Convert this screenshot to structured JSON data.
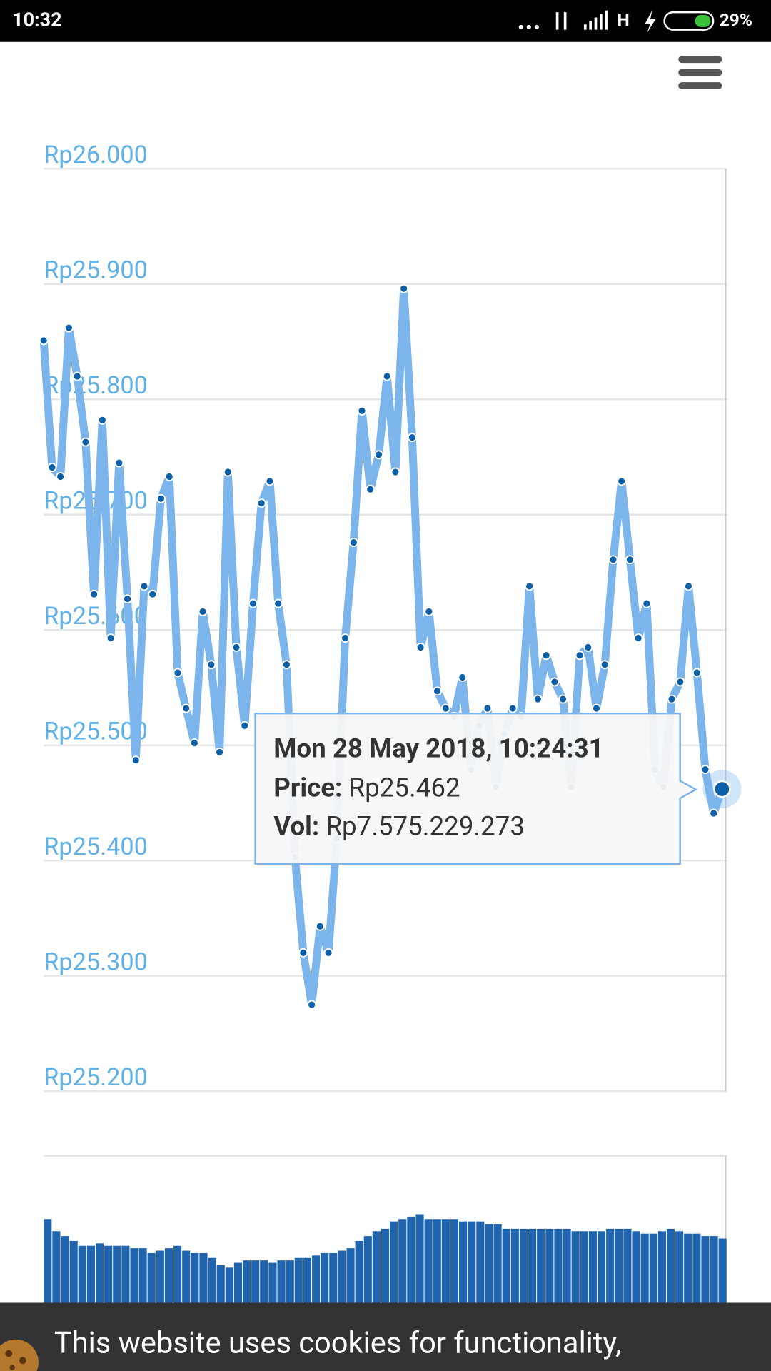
{
  "status_bar": {
    "time": "10:32",
    "network": "H",
    "battery": "29%"
  },
  "chart_data": [
    {
      "type": "line",
      "series": [
        {
          "name": "Price",
          "color": "#7cb5ec",
          "values": [
            25851,
            25741,
            25733,
            25862,
            25820,
            25763,
            25631,
            25782,
            25593,
            25745,
            25627,
            25487,
            25638,
            25631,
            25714,
            25733,
            25563,
            25532,
            25502,
            25616,
            25570,
            25494,
            25737,
            25585,
            25517,
            25623,
            25710,
            25729,
            25623,
            25570,
            25403,
            25320,
            25275,
            25343,
            25320,
            25419,
            25593,
            25676,
            25790,
            25722,
            25752,
            25820,
            25737,
            25896,
            25767,
            25585,
            25616,
            25547,
            25532,
            25525,
            25559,
            25479,
            25517,
            25532,
            25464,
            25510,
            25532,
            25525,
            25638,
            25540,
            25578,
            25555,
            25540,
            25464,
            25578,
            25585,
            25532,
            25570,
            25661,
            25729,
            25661,
            25593,
            25623,
            25479,
            25464,
            25540,
            25555,
            25638,
            25563,
            25479,
            25441,
            25462
          ]
        }
      ],
      "ylim": [
        25200,
        26000
      ],
      "yticks": [
        {
          "value": 25200,
          "label": "Rp25.200"
        },
        {
          "value": 25300,
          "label": "Rp25.300"
        },
        {
          "value": 25400,
          "label": "Rp25.400"
        },
        {
          "value": 25500,
          "label": "Rp25.500"
        },
        {
          "value": 25600,
          "label": "Rp25.600"
        },
        {
          "value": 25700,
          "label": "Rp25.700"
        },
        {
          "value": 25800,
          "label": "Rp25.800"
        },
        {
          "value": 25900,
          "label": "Rp25.900"
        },
        {
          "value": 26000,
          "label": "Rp26.000"
        }
      ],
      "grid": true,
      "tooltip": {
        "date": "Mon 28 May 2018, 10:24:31",
        "price_label": "Price:",
        "price": "Rp25.462",
        "vol_label": "Vol:",
        "vol": "Rp7.575.229.273"
      }
    },
    {
      "type": "bar",
      "color": "#1f64ac",
      "values": [
        74,
        69,
        67,
        65,
        63,
        63,
        64,
        63,
        63,
        63,
        62,
        62,
        60,
        61,
        62,
        63,
        61,
        60,
        60,
        58,
        55,
        54,
        56,
        57,
        57,
        57,
        56,
        57,
        57,
        58,
        58,
        59,
        60,
        60,
        61,
        62,
        65,
        67,
        69,
        70,
        73,
        74,
        75,
        76,
        74,
        74,
        74,
        74,
        73,
        73,
        73,
        72,
        72,
        70,
        70,
        70,
        70,
        70,
        70,
        70,
        70,
        69,
        69,
        69,
        69,
        70,
        70,
        70,
        69,
        68,
        68,
        69,
        70,
        69,
        68,
        68,
        67,
        67,
        66
      ],
      "ylim": [
        0,
        100
      ]
    }
  ],
  "cookie_banner": {
    "text": "This website uses cookies for functionality,"
  }
}
